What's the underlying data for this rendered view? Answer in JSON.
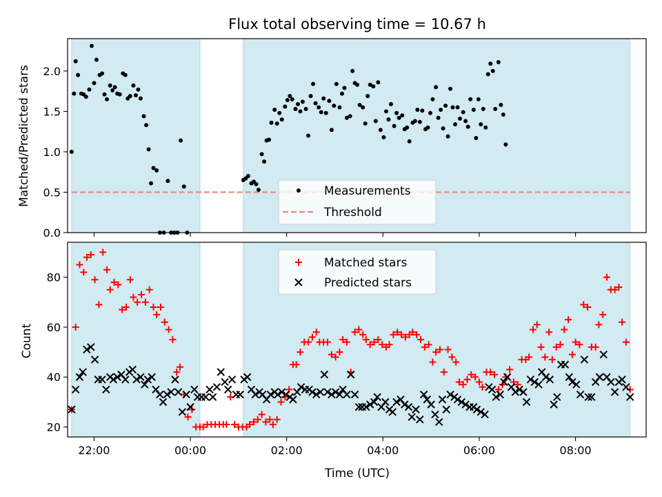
{
  "title": "Flux total observing time = 10.67 h",
  "colors": {
    "shade": "#add8e6",
    "measurement": "#000000",
    "threshold": "#f08080",
    "matched": "#ff0000",
    "predicted": "#000000"
  },
  "chart_data": [
    {
      "type": "scatter",
      "panel": "top",
      "title": "Flux total observing time = 10.67 h",
      "xlabel": "",
      "ylabel": "Matched/Predicted stars",
      "xlim": [
        "21:27",
        "09:28"
      ],
      "ylim": [
        0,
        2.4
      ],
      "yticks": [
        "0.0",
        "0.5",
        "1.0",
        "1.5",
        "2.0"
      ],
      "legend_position": "lower center",
      "shaded_intervals": [
        [
          "21:32",
          "00:12"
        ],
        [
          "01:06",
          "09:08"
        ]
      ],
      "threshold": {
        "name": "Threshold",
        "value": 0.5,
        "x_range": [
          "21:32",
          "09:08"
        ],
        "style": "dashed"
      },
      "measurements": {
        "name": "Measurements",
        "points": [
          [
            "21:32",
            1.0
          ],
          [
            "21:35",
            1.72
          ],
          [
            "21:37",
            2.12
          ],
          [
            "21:40",
            1.95
          ],
          [
            "21:44",
            1.72
          ],
          [
            "21:47",
            1.71
          ],
          [
            "21:50",
            1.68
          ],
          [
            "21:54",
            1.77
          ],
          [
            "21:57",
            2.31
          ],
          [
            "22:00",
            1.85
          ],
          [
            "22:03",
            2.14
          ],
          [
            "22:07",
            1.95
          ],
          [
            "22:10",
            1.97
          ],
          [
            "22:13",
            1.71
          ],
          [
            "22:16",
            1.65
          ],
          [
            "22:20",
            1.82
          ],
          [
            "22:23",
            1.76
          ],
          [
            "22:26",
            1.8
          ],
          [
            "22:29",
            1.72
          ],
          [
            "22:32",
            1.71
          ],
          [
            "22:36",
            1.97
          ],
          [
            "22:39",
            1.95
          ],
          [
            "22:42",
            1.66
          ],
          [
            "22:45",
            1.69
          ],
          [
            "22:49",
            1.82
          ],
          [
            "22:52",
            1.7
          ],
          [
            "22:55",
            1.77
          ],
          [
            "22:58",
            1.66
          ],
          [
            "23:02",
            1.44
          ],
          [
            "23:05",
            1.33
          ],
          [
            "23:08",
            1.03
          ],
          [
            "23:11",
            0.61
          ],
          [
            "23:14",
            0.8
          ],
          [
            "23:18",
            0.77
          ],
          [
            "23:22",
            0.0
          ],
          [
            "23:27",
            0.0
          ],
          [
            "23:32",
            0.64
          ],
          [
            "23:36",
            0.0
          ],
          [
            "23:40",
            0.0
          ],
          [
            "23:44",
            0.0
          ],
          [
            "23:48",
            1.14
          ],
          [
            "23:52",
            0.57
          ],
          [
            "23:56",
            0.0
          ],
          [
            "01:06",
            0.65
          ],
          [
            "01:09",
            0.67
          ],
          [
            "01:12",
            0.7
          ],
          [
            "01:16",
            0.61
          ],
          [
            "01:19",
            0.63
          ],
          [
            "01:22",
            0.6
          ],
          [
            "01:25",
            0.53
          ],
          [
            "01:29",
            0.97
          ],
          [
            "01:32",
            0.88
          ],
          [
            "01:35",
            1.14
          ],
          [
            "01:38",
            1.15
          ],
          [
            "01:41",
            1.36
          ],
          [
            "01:45",
            1.52
          ],
          [
            "01:48",
            1.35
          ],
          [
            "01:51",
            1.48
          ],
          [
            "01:54",
            1.4
          ],
          [
            "01:58",
            1.56
          ],
          [
            "02:01",
            1.64
          ],
          [
            "02:04",
            1.69
          ],
          [
            "02:07",
            1.65
          ],
          [
            "02:11",
            1.53
          ],
          [
            "02:14",
            1.59
          ],
          [
            "02:17",
            1.5
          ],
          [
            "02:20",
            1.62
          ],
          [
            "02:24",
            1.53
          ],
          [
            "02:27",
            1.2
          ],
          [
            "02:30",
            1.69
          ],
          [
            "02:33",
            1.84
          ],
          [
            "02:36",
            1.6
          ],
          [
            "02:40",
            1.55
          ],
          [
            "02:43",
            1.49
          ],
          [
            "02:46",
            1.66
          ],
          [
            "02:49",
            1.48
          ],
          [
            "02:53",
            1.63
          ],
          [
            "02:56",
            1.27
          ],
          [
            "02:59",
            1.57
          ],
          [
            "03:02",
            1.84
          ],
          [
            "03:06",
            1.55
          ],
          [
            "03:09",
            1.72
          ],
          [
            "03:12",
            1.79
          ],
          [
            "03:15",
            1.42
          ],
          [
            "03:19",
            1.44
          ],
          [
            "03:22",
            2.0
          ],
          [
            "03:25",
            1.85
          ],
          [
            "03:28",
            1.83
          ],
          [
            "03:31",
            1.58
          ],
          [
            "03:35",
            1.55
          ],
          [
            "03:38",
            1.35
          ],
          [
            "03:41",
            1.69
          ],
          [
            "03:44",
            1.83
          ],
          [
            "03:48",
            1.81
          ],
          [
            "03:51",
            1.38
          ],
          [
            "03:54",
            1.86
          ],
          [
            "03:57",
            1.27
          ],
          [
            "04:01",
            1.18
          ],
          [
            "04:04",
            1.5
          ],
          [
            "04:07",
            1.4
          ],
          [
            "04:10",
            1.59
          ],
          [
            "04:14",
            1.32
          ],
          [
            "04:17",
            1.48
          ],
          [
            "04:20",
            1.42
          ],
          [
            "04:24",
            1.45
          ],
          [
            "04:27",
            1.28
          ],
          [
            "04:30",
            1.3
          ],
          [
            "04:33",
            1.13
          ],
          [
            "04:37",
            1.36
          ],
          [
            "04:40",
            1.38
          ],
          [
            "04:43",
            1.52
          ],
          [
            "04:46",
            1.37
          ],
          [
            "04:49",
            1.51
          ],
          [
            "04:53",
            1.28
          ],
          [
            "04:56",
            1.3
          ],
          [
            "04:59",
            1.48
          ],
          [
            "05:02",
            1.65
          ],
          [
            "05:06",
            1.8
          ],
          [
            "05:09",
            1.42
          ],
          [
            "05:12",
            1.52
          ],
          [
            "05:15",
            1.29
          ],
          [
            "05:18",
            1.57
          ],
          [
            "05:21",
            1.19
          ],
          [
            "05:24",
            1.78
          ],
          [
            "05:27",
            1.55
          ],
          [
            "05:30",
            1.34
          ],
          [
            "05:33",
            1.55
          ],
          [
            "05:36",
            1.41
          ],
          [
            "05:40",
            1.49
          ],
          [
            "05:43",
            1.38
          ],
          [
            "05:46",
            1.31
          ],
          [
            "05:49",
            1.65
          ],
          [
            "05:53",
            1.52
          ],
          [
            "05:56",
            1.17
          ],
          [
            "05:59",
            1.65
          ],
          [
            "06:02",
            1.34
          ],
          [
            "06:05",
            1.53
          ],
          [
            "06:08",
            1.3
          ],
          [
            "06:11",
            1.96
          ],
          [
            "06:14",
            2.09
          ],
          [
            "06:17",
            2.0
          ],
          [
            "06:20",
            1.53
          ],
          [
            "06:24",
            2.11
          ],
          [
            "06:27",
            1.58
          ],
          [
            "06:30",
            1.46
          ],
          [
            "06:33",
            1.09
          ]
        ]
      }
    },
    {
      "type": "scatter",
      "panel": "bottom",
      "xlabel": "Time (UTC)",
      "ylabel": "Count",
      "xlim": [
        "21:27",
        "09:28"
      ],
      "ylim": [
        16,
        94
      ],
      "yticks": [
        "20",
        "40",
        "60",
        "80"
      ],
      "xticks": [
        "22:00",
        "00:00",
        "02:00",
        "04:00",
        "06:00",
        "08:00"
      ],
      "legend_position": "upper center",
      "series": [
        {
          "name": "Matched stars",
          "marker": "+",
          "values": [
            27,
            60,
            85,
            82,
            88,
            89,
            79,
            69,
            90,
            83,
            75,
            78,
            77,
            67,
            68,
            79,
            72,
            70,
            73,
            70,
            75,
            68,
            65,
            68,
            62,
            59,
            55,
            42,
            44,
            33,
            24,
            27,
            20,
            20,
            20,
            21,
            21,
            21,
            21,
            21,
            21,
            32,
            21,
            20,
            20,
            20,
            21,
            22,
            23,
            25,
            22,
            23,
            21,
            23,
            30,
            32,
            35,
            45,
            45,
            50,
            54,
            54,
            56,
            58,
            54,
            54,
            54,
            49,
            48,
            50,
            55,
            54,
            42,
            58,
            59,
            57,
            55,
            53,
            54,
            55,
            53,
            52,
            53,
            57,
            58,
            57,
            56,
            57,
            58,
            57,
            55,
            52,
            53,
            46,
            50,
            51,
            42,
            51,
            48,
            46,
            38,
            37,
            39,
            41,
            40,
            38,
            36,
            42,
            42,
            41,
            35,
            37,
            40,
            43,
            38,
            37,
            47,
            47,
            48,
            59,
            61,
            52,
            48,
            58,
            47,
            52,
            53,
            59,
            63,
            49,
            54,
            53,
            69,
            68,
            52,
            52,
            61,
            65,
            80,
            75,
            75,
            76,
            62,
            54,
            35
          ]
        },
        {
          "name": "Predicted stars",
          "marker": "x",
          "values": [
            27,
            35,
            40,
            42,
            51,
            52,
            47,
            39,
            39,
            35,
            40,
            39,
            40,
            41,
            39,
            42,
            43,
            39,
            40,
            37,
            39,
            40,
            35,
            33,
            30,
            33,
            34,
            39,
            34,
            26,
            33,
            28,
            35,
            32,
            32,
            32,
            35,
            32,
            36,
            42,
            38,
            35,
            39,
            33,
            33,
            39,
            40,
            35,
            33,
            34,
            33,
            31,
            33,
            34,
            33,
            34,
            33,
            32,
            31,
            34,
            36,
            35,
            35,
            34,
            33,
            34,
            41,
            34,
            33,
            34,
            33,
            35,
            33,
            41,
            33,
            28,
            28,
            28,
            29,
            30,
            32,
            28,
            30,
            27,
            26,
            30,
            31,
            29,
            28,
            24,
            27,
            23,
            33,
            31,
            29,
            25,
            22,
            31,
            27,
            33,
            32,
            31,
            30,
            29,
            28,
            28,
            27,
            26,
            25,
            36,
            35,
            32,
            33,
            38,
            40,
            36,
            34,
            35,
            34,
            30,
            39,
            38,
            37,
            42,
            40,
            39,
            29,
            32,
            45,
            45,
            40,
            38,
            37,
            33,
            47,
            32,
            32,
            38,
            40,
            49,
            40,
            38,
            34,
            38,
            39,
            36,
            32
          ]
        }
      ]
    }
  ]
}
